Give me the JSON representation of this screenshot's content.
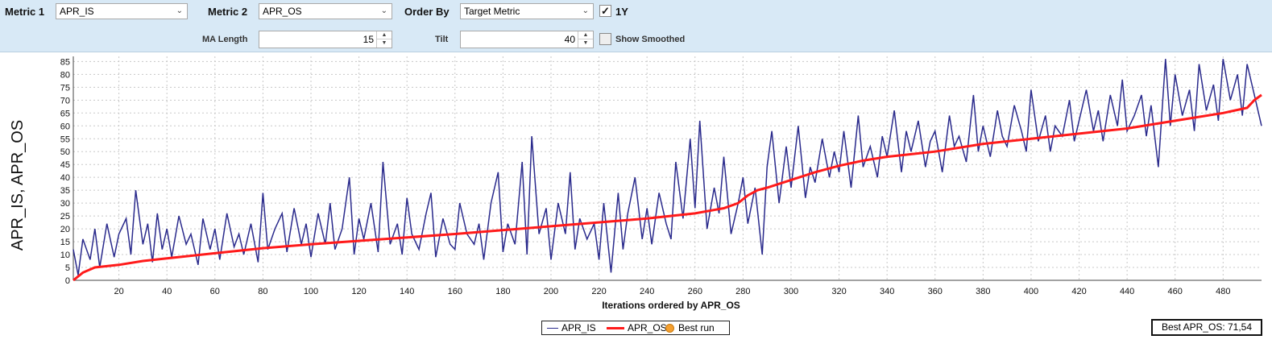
{
  "toolbar": {
    "metric1_label": "Metric 1",
    "metric1_value": "APR_IS",
    "metric2_label": "Metric 2",
    "metric2_value": "APR_OS",
    "order_by_label": "Order By",
    "order_by_value": "Target Metric",
    "one_year_label": "1Y",
    "one_year_checked": true,
    "ma_length_label": "MA Length",
    "ma_length_value": "15",
    "tilt_label": "Tilt",
    "tilt_value": "40",
    "show_smoothed_label": "Show Smoothed",
    "show_smoothed_checked": false
  },
  "legend": {
    "items": [
      {
        "label": "APR_IS",
        "color": "#2a2a8c"
      },
      {
        "label": "APR_OS",
        "color": "#ff1a1a"
      },
      {
        "label": "Best run",
        "color": "#f5a030"
      }
    ]
  },
  "best_label": "Best APR_OS: 71,54",
  "chart_data": {
    "type": "line",
    "xlabel": "Iterations ordered by APR_OS",
    "ylabel": "APR_IS, APR_OS",
    "xlim": [
      1,
      496
    ],
    "ylim": [
      0,
      87
    ],
    "xticks": [
      20,
      40,
      60,
      80,
      100,
      120,
      140,
      160,
      180,
      200,
      220,
      240,
      260,
      280,
      300,
      320,
      340,
      360,
      380,
      400,
      420,
      440,
      460,
      480
    ],
    "yticks": [
      0,
      5,
      10,
      15,
      20,
      25,
      30,
      35,
      40,
      45,
      50,
      55,
      60,
      65,
      70,
      75,
      80,
      85
    ],
    "grid": true,
    "legend_position": "bottom-center",
    "series": [
      {
        "name": "APR_OS",
        "color": "#ff1a1a",
        "x": [
          1,
          5,
          10,
          20,
          30,
          40,
          60,
          80,
          100,
          130,
          160,
          200,
          240,
          260,
          272,
          278,
          282,
          286,
          290,
          300,
          310,
          320,
          330,
          340,
          360,
          380,
          400,
          420,
          440,
          460,
          480,
          490,
          493,
          496
        ],
        "values": [
          0,
          3,
          5,
          6,
          7.5,
          8.5,
          10.5,
          12.5,
          14,
          16,
          18,
          21,
          24,
          26,
          28,
          30,
          33,
          35,
          36,
          39,
          42,
          44.5,
          46.5,
          48,
          50,
          53,
          55,
          57,
          59,
          62,
          65,
          67,
          70,
          72
        ]
      },
      {
        "name": "APR_IS",
        "color": "#2a2a8c",
        "x": [
          1,
          3,
          5,
          8,
          10,
          12,
          15,
          18,
          20,
          23,
          25,
          27,
          30,
          32,
          34,
          36,
          38,
          40,
          42,
          45,
          48,
          50,
          53,
          55,
          58,
          60,
          62,
          65,
          68,
          70,
          72,
          75,
          78,
          80,
          82,
          85,
          88,
          90,
          93,
          96,
          98,
          100,
          103,
          106,
          108,
          110,
          113,
          116,
          118,
          120,
          122,
          125,
          128,
          130,
          133,
          136,
          138,
          140,
          142,
          145,
          148,
          150,
          152,
          155,
          158,
          160,
          162,
          165,
          168,
          170,
          172,
          175,
          178,
          180,
          182,
          185,
          188,
          190,
          192,
          195,
          198,
          200,
          203,
          206,
          208,
          210,
          212,
          215,
          218,
          220,
          222,
          225,
          228,
          230,
          232,
          235,
          238,
          240,
          242,
          245,
          248,
          250,
          252,
          255,
          258,
          260,
          262,
          265,
          268,
          270,
          272,
          275,
          278,
          280,
          282,
          285,
          288,
          290,
          292,
          295,
          298,
          300,
          303,
          306,
          308,
          310,
          313,
          316,
          318,
          320,
          322,
          325,
          328,
          330,
          333,
          336,
          338,
          340,
          343,
          346,
          348,
          350,
          353,
          356,
          358,
          360,
          363,
          366,
          368,
          370,
          373,
          376,
          378,
          380,
          383,
          386,
          388,
          390,
          393,
          396,
          398,
          400,
          403,
          406,
          408,
          410,
          413,
          416,
          418,
          420,
          423,
          426,
          428,
          430,
          433,
          436,
          438,
          440,
          443,
          446,
          448,
          450,
          453,
          456,
          458,
          460,
          463,
          466,
          468,
          470,
          473,
          476,
          478,
          480,
          483,
          486,
          488,
          490,
          493,
          496
        ],
        "values": [
          12,
          2,
          16,
          8,
          20,
          5,
          22,
          9,
          18,
          24,
          10,
          35,
          14,
          22,
          7,
          26,
          12,
          20,
          9,
          25,
          14,
          18,
          6,
          24,
          12,
          20,
          8,
          26,
          13,
          18,
          10,
          22,
          7,
          34,
          12,
          20,
          26,
          11,
          28,
          14,
          22,
          9,
          26,
          14,
          30,
          12,
          20,
          40,
          10,
          24,
          16,
          30,
          11,
          46,
          14,
          22,
          10,
          32,
          18,
          12,
          26,
          34,
          9,
          24,
          14,
          12,
          30,
          18,
          14,
          22,
          8,
          30,
          42,
          11,
          22,
          14,
          46,
          10,
          56,
          18,
          28,
          8,
          30,
          18,
          42,
          12,
          24,
          16,
          22,
          8,
          30,
          3,
          34,
          12,
          26,
          40,
          16,
          28,
          14,
          34,
          22,
          16,
          46,
          24,
          55,
          28,
          62,
          20,
          36,
          26,
          48,
          18,
          30,
          40,
          22,
          36,
          10,
          44,
          58,
          30,
          52,
          36,
          60,
          32,
          44,
          38,
          55,
          40,
          50,
          42,
          58,
          36,
          64,
          44,
          52,
          40,
          56,
          48,
          66,
          42,
          58,
          50,
          62,
          44,
          54,
          58,
          42,
          64,
          52,
          56,
          46,
          72,
          50,
          60,
          48,
          66,
          56,
          52,
          68,
          58,
          50,
          74,
          54,
          64,
          50,
          60,
          56,
          70,
          54,
          62,
          74,
          58,
          66,
          54,
          72,
          60,
          78,
          58,
          64,
          72,
          56,
          68,
          44,
          86,
          60,
          80,
          64,
          74,
          58,
          84,
          66,
          76,
          62,
          86,
          70,
          80,
          64,
          84,
          72,
          60
        ]
      }
    ]
  }
}
